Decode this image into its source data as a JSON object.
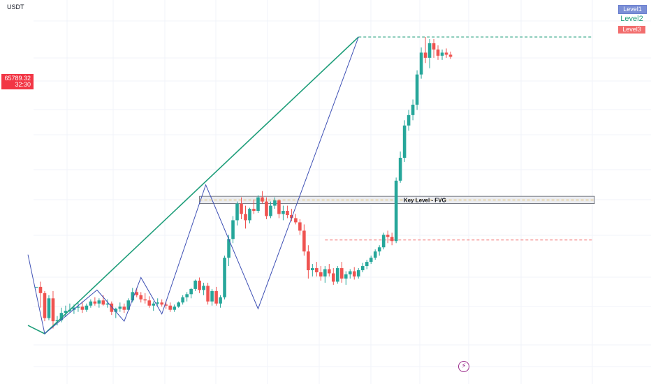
{
  "header": {
    "currency": "USDT"
  },
  "price_tag": {
    "price": "65789.32",
    "countdown": "32:30"
  },
  "legend": [
    {
      "label": "Level1",
      "color": "#7b8fd6"
    },
    {
      "label": "Level2",
      "color": "#1f9e7a"
    },
    {
      "label": "Level3",
      "color": "#f26d6d"
    }
  ],
  "colors": {
    "bull": "#26a69a",
    "bear": "#ef5350",
    "trend": "#1f9e7a",
    "zigzag": "#3f51b5",
    "fvg_box": "#b2b5be",
    "fvg_mid": "#e0b84f",
    "grid": "#f0f3fa"
  },
  "icons": {
    "replay": "lightning-icon"
  },
  "chart_data": {
    "type": "candlestick",
    "candles": [
      [
        0.8,
        0.8,
        0.8,
        0.8
      ],
      [
        0.8,
        0.85,
        0.6,
        0.74
      ],
      [
        0.74,
        0.76,
        0.47,
        0.5
      ],
      [
        0.5,
        0.72,
        0.48,
        0.69
      ],
      [
        0.69,
        0.76,
        0.4,
        0.47
      ],
      [
        0.47,
        0.52,
        0.43,
        0.48
      ],
      [
        0.48,
        0.6,
        0.46,
        0.55
      ],
      [
        0.55,
        0.62,
        0.51,
        0.57
      ],
      [
        0.57,
        0.64,
        0.55,
        0.58
      ],
      [
        0.58,
        0.63,
        0.54,
        0.6
      ],
      [
        0.6,
        0.65,
        0.56,
        0.61
      ],
      [
        0.61,
        0.66,
        0.55,
        0.58
      ],
      [
        0.58,
        0.64,
        0.56,
        0.62
      ],
      [
        0.62,
        0.68,
        0.6,
        0.66
      ],
      [
        0.66,
        0.7,
        0.62,
        0.64
      ],
      [
        0.64,
        0.69,
        0.6,
        0.67
      ],
      [
        0.67,
        0.72,
        0.62,
        0.63
      ],
      [
        0.63,
        0.68,
        0.6,
        0.64
      ],
      [
        0.64,
        0.66,
        0.53,
        0.56
      ],
      [
        0.56,
        0.6,
        0.5,
        0.59
      ],
      [
        0.59,
        0.65,
        0.56,
        0.61
      ],
      [
        0.61,
        0.64,
        0.55,
        0.58
      ],
      [
        0.58,
        0.69,
        0.57,
        0.67
      ],
      [
        0.67,
        0.79,
        0.65,
        0.75
      ],
      [
        0.75,
        0.79,
        0.7,
        0.72
      ],
      [
        0.72,
        0.75,
        0.65,
        0.68
      ],
      [
        0.68,
        0.74,
        0.64,
        0.67
      ],
      [
        0.67,
        0.71,
        0.6,
        0.62
      ],
      [
        0.62,
        0.66,
        0.57,
        0.64
      ],
      [
        0.64,
        0.69,
        0.62,
        0.65
      ],
      [
        0.65,
        0.68,
        0.61,
        0.63
      ],
      [
        0.63,
        0.66,
        0.59,
        0.62
      ],
      [
        0.62,
        0.65,
        0.56,
        0.58
      ],
      [
        0.58,
        0.63,
        0.56,
        0.61
      ],
      [
        0.61,
        0.66,
        0.6,
        0.65
      ],
      [
        0.65,
        0.72,
        0.63,
        0.7
      ],
      [
        0.7,
        0.75,
        0.66,
        0.73
      ],
      [
        0.73,
        0.79,
        0.69,
        0.78
      ],
      [
        0.78,
        0.87,
        0.76,
        0.86
      ],
      [
        0.86,
        0.89,
        0.74,
        0.77
      ],
      [
        0.77,
        0.84,
        0.72,
        0.81
      ],
      [
        0.81,
        0.84,
        0.63,
        0.66
      ],
      [
        0.66,
        0.78,
        0.62,
        0.76
      ],
      [
        0.76,
        0.8,
        0.62,
        0.64
      ],
      [
        0.64,
        0.72,
        0.6,
        0.7
      ],
      [
        0.7,
        1.1,
        0.68,
        1.08
      ],
      [
        1.08,
        1.3,
        1.0,
        1.26
      ],
      [
        1.26,
        1.48,
        1.22,
        1.44
      ],
      [
        1.44,
        1.62,
        1.39,
        1.6
      ],
      [
        1.6,
        1.66,
        1.45,
        1.5
      ],
      [
        1.5,
        1.58,
        1.36,
        1.44
      ],
      [
        1.44,
        1.56,
        1.41,
        1.55
      ],
      [
        1.55,
        1.64,
        1.5,
        1.53
      ],
      [
        1.53,
        1.68,
        1.51,
        1.66
      ],
      [
        1.66,
        1.72,
        1.6,
        1.62
      ],
      [
        1.62,
        1.66,
        1.45,
        1.48
      ],
      [
        1.48,
        1.62,
        1.46,
        1.58
      ],
      [
        1.58,
        1.66,
        1.55,
        1.63
      ],
      [
        1.63,
        1.64,
        1.46,
        1.5
      ],
      [
        1.5,
        1.58,
        1.44,
        1.53
      ],
      [
        1.53,
        1.58,
        1.46,
        1.49
      ],
      [
        1.49,
        1.55,
        1.43,
        1.46
      ],
      [
        1.46,
        1.5,
        1.4,
        1.42
      ],
      [
        1.42,
        1.45,
        1.3,
        1.34
      ],
      [
        1.34,
        1.4,
        1.1,
        1.14
      ],
      [
        1.14,
        1.2,
        0.88,
        0.96
      ],
      [
        0.96,
        1.02,
        0.9,
        0.98
      ],
      [
        0.98,
        1.04,
        0.9,
        0.94
      ],
      [
        0.94,
        1.0,
        0.86,
        0.9
      ],
      [
        0.9,
        1.0,
        0.84,
        0.97
      ],
      [
        0.97,
        1.02,
        0.9,
        0.93
      ],
      [
        0.93,
        0.98,
        0.82,
        0.85
      ],
      [
        0.85,
        1.0,
        0.83,
        0.98
      ],
      [
        0.98,
        1.04,
        0.84,
        0.88
      ],
      [
        0.88,
        0.95,
        0.82,
        0.92
      ],
      [
        0.92,
        0.97,
        0.88,
        0.95
      ],
      [
        0.95,
        0.99,
        0.87,
        0.9
      ],
      [
        0.9,
        0.98,
        0.88,
        0.96
      ],
      [
        0.96,
        1.03,
        0.94,
        1.0
      ],
      [
        1.0,
        1.06,
        0.97,
        1.04
      ],
      [
        1.04,
        1.1,
        1.02,
        1.08
      ],
      [
        1.08,
        1.16,
        1.06,
        1.14
      ],
      [
        1.14,
        1.2,
        1.1,
        1.18
      ],
      [
        1.18,
        1.32,
        1.16,
        1.3
      ],
      [
        1.3,
        1.34,
        1.22,
        1.28
      ],
      [
        1.28,
        1.32,
        1.2,
        1.24
      ],
      [
        1.24,
        1.85,
        1.22,
        1.82
      ],
      [
        1.82,
        2.1,
        1.8,
        2.04
      ],
      [
        2.04,
        2.4,
        2.0,
        2.35
      ],
      [
        2.35,
        2.5,
        2.3,
        2.45
      ],
      [
        2.45,
        2.6,
        2.4,
        2.55
      ],
      [
        2.55,
        2.88,
        2.5,
        2.84
      ],
      [
        2.84,
        3.1,
        2.8,
        3.05
      ],
      [
        3.05,
        3.2,
        2.95,
        3.0
      ],
      [
        3.0,
        3.18,
        2.9,
        3.14
      ],
      [
        3.14,
        3.18,
        3.0,
        3.08
      ],
      [
        3.08,
        3.12,
        2.98,
        3.02
      ],
      [
        3.02,
        3.08,
        2.98,
        3.05
      ],
      [
        3.05,
        3.09,
        3.0,
        3.03
      ],
      [
        3.03,
        3.06,
        2.99,
        3.01
      ]
    ],
    "xlim": [
      0,
      115
    ],
    "ylim": [
      0,
      3.2
    ],
    "key_level": {
      "label": "Key Level - FVG",
      "start_bar": 39,
      "y_low": 1.6,
      "y_high": 1.67,
      "y_mid": 1.635
    },
    "dashed_levels": [
      {
        "name": "Level2",
        "start_bar": 77,
        "y": 3.2,
        "color": "#1f9e7a"
      },
      {
        "name": "Level3",
        "start_bar": 69,
        "y": 1.25,
        "color": "#f26d6d"
      }
    ],
    "trendline": {
      "points": [
        [
          -2,
          0.43
        ],
        [
          2,
          0.35
        ],
        [
          77,
          3.2
        ]
      ]
    },
    "zigzag": {
      "points": [
        [
          -2,
          1.11
        ],
        [
          2,
          0.35
        ],
        [
          14.5,
          0.77
        ],
        [
          21,
          0.47
        ],
        [
          25,
          0.89
        ],
        [
          30,
          0.54
        ],
        [
          40.5,
          1.78
        ],
        [
          53,
          0.59
        ],
        [
          77,
          3.2
        ]
      ]
    }
  }
}
